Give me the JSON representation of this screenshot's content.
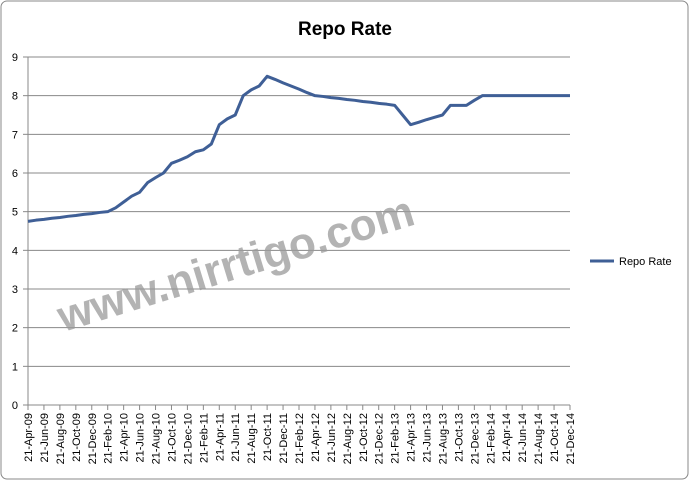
{
  "chart_data": {
    "type": "line",
    "title": "Repo Rate",
    "watermark": "www.nirrtigo.com",
    "categories": [
      "21-Apr-09",
      null,
      "21-Jun-09",
      null,
      "21-Aug-09",
      null,
      "21-Oct-09",
      null,
      "21-Dec-09",
      null,
      "21-Feb-10",
      null,
      "21-Apr-10",
      null,
      "21-Jun-10",
      null,
      "21-Aug-10",
      null,
      "21-Oct-10",
      null,
      "21-Dec-10",
      null,
      "21-Feb-11",
      null,
      "21-Apr-11",
      null,
      "21-Jun-11",
      null,
      "21-Aug-11",
      null,
      "21-Oct-11",
      null,
      "21-Dec-11",
      null,
      "21-Feb-12",
      null,
      "21-Apr-12",
      null,
      "21-Jun-12",
      null,
      "21-Aug-12",
      null,
      "21-Oct-12",
      null,
      "21-Dec-12",
      null,
      "21-Feb-13",
      null,
      "21-Apr-13",
      null,
      "21-Jun-13",
      null,
      "21-Aug-13",
      null,
      "21-Oct-13",
      null,
      "21-Dec-13",
      null,
      "21-Feb-14",
      null,
      "21-Apr-14",
      null,
      "21-Jun-14",
      null,
      "21-Aug-14",
      null,
      "21-Oct-14",
      null,
      "21-Dec-14"
    ],
    "series": [
      {
        "name": "Repo Rate",
        "color": "#3f5f96",
        "values": [
          4.75,
          4.78,
          4.8,
          4.83,
          4.85,
          4.88,
          4.9,
          4.93,
          4.95,
          4.98,
          5.0,
          5.1,
          5.25,
          5.4,
          5.5,
          5.75,
          5.88,
          6.0,
          6.25,
          6.33,
          6.42,
          6.55,
          6.6,
          6.75,
          7.25,
          7.4,
          7.5,
          8.0,
          8.15,
          8.25,
          8.5,
          8.42,
          8.33,
          8.25,
          8.17,
          8.08,
          8.0,
          7.98,
          7.95,
          7.93,
          7.9,
          7.88,
          7.85,
          7.83,
          7.8,
          7.78,
          7.75,
          7.5,
          7.25,
          7.31,
          7.38,
          7.44,
          7.5,
          7.75,
          7.75,
          7.75,
          7.88,
          8.0,
          8.0,
          8.0,
          8.0,
          8.0,
          8.0,
          8.0,
          8.0,
          8.0,
          8.0,
          8.0,
          8.0
        ]
      }
    ],
    "ylim": [
      0,
      9
    ],
    "yticks": [
      0,
      1,
      2,
      3,
      4,
      5,
      6,
      7,
      8,
      9
    ],
    "grid": true,
    "legend": "right"
  }
}
